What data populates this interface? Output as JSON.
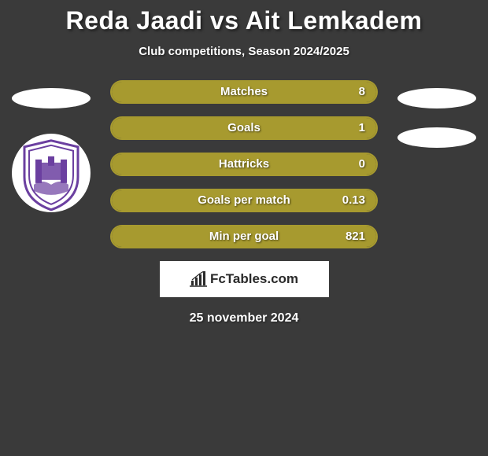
{
  "title": "Reda Jaadi vs Ait Lemkadem",
  "subtitle": "Club competitions, Season 2024/2025",
  "colors": {
    "background": "#3a3a3a",
    "bar_fill": "#a79a2f",
    "bar_border": "#a79a2f",
    "text": "#ffffff",
    "badge_purple": "#6b3fa0"
  },
  "left_player": {
    "has_badge": true
  },
  "stats": [
    {
      "label": "Matches",
      "value": "8",
      "fill_pct": 100
    },
    {
      "label": "Goals",
      "value": "1",
      "fill_pct": 100
    },
    {
      "label": "Hattricks",
      "value": "0",
      "fill_pct": 100
    },
    {
      "label": "Goals per match",
      "value": "0.13",
      "fill_pct": 100
    },
    {
      "label": "Min per goal",
      "value": "821",
      "fill_pct": 100
    }
  ],
  "footer": {
    "brand": "FcTables.com"
  },
  "date": "25 november 2024"
}
